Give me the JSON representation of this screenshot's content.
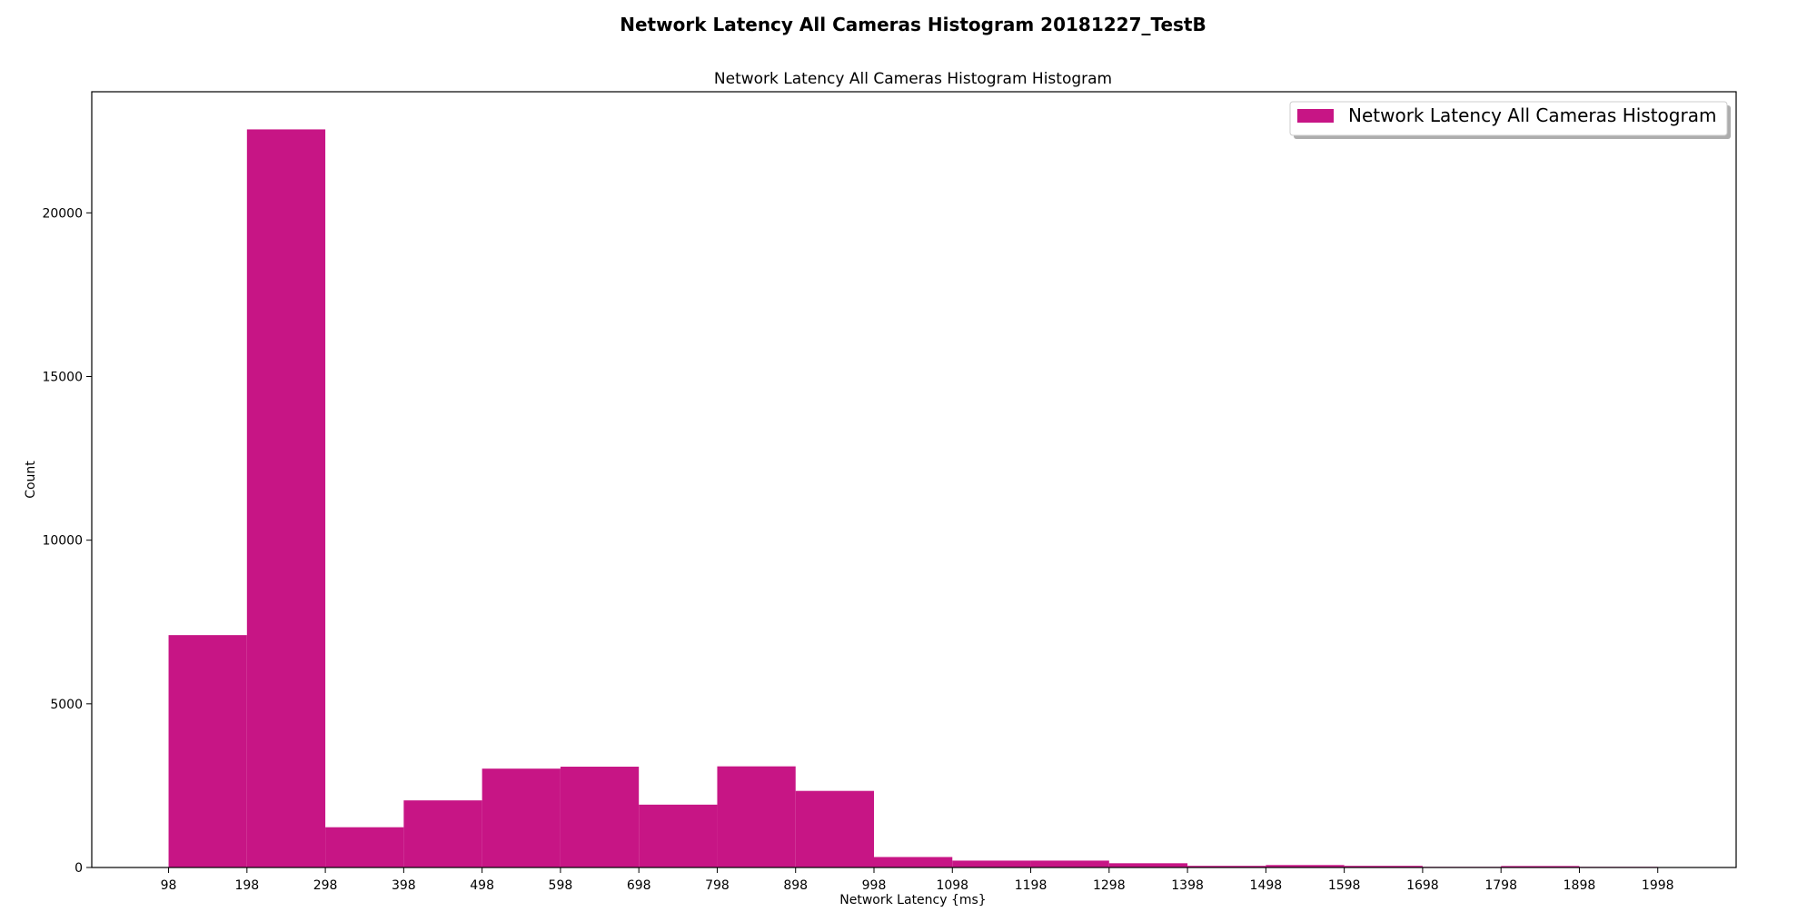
{
  "figure_title": "Network Latency All Cameras Histogram 20181227_TestB",
  "chart_data": {
    "type": "bar",
    "title": "Network Latency All Cameras Histogram Histogram",
    "xlabel": "Network Latency {ms}",
    "ylabel": "Count",
    "xlim": [
      0,
      2098
    ],
    "ylim": [
      0,
      23700
    ],
    "bin_edges": [
      98,
      198,
      298,
      398,
      498,
      598,
      698,
      798,
      898,
      998,
      1098,
      1198,
      1298,
      1398,
      1498,
      1598,
      1698,
      1798,
      1898,
      1998
    ],
    "values": [
      7100,
      22550,
      1230,
      2050,
      3020,
      3080,
      1920,
      3090,
      2340,
      320,
      210,
      210,
      130,
      50,
      75,
      50,
      20,
      45,
      20
    ],
    "x_ticks": [
      "98",
      "198",
      "298",
      "398",
      "498",
      "598",
      "698",
      "798",
      "898",
      "998",
      "1098",
      "1198",
      "1298",
      "1398",
      "1498",
      "1598",
      "1698",
      "1798",
      "1898",
      "1998"
    ],
    "y_ticks": [
      0,
      5000,
      10000,
      15000,
      20000
    ],
    "y_tick_labels": [
      "0",
      "5000",
      "10000",
      "15000",
      "20000"
    ],
    "series": [
      {
        "name": "Network Latency All Cameras Histogram",
        "color": "#c71585"
      }
    ],
    "legend": {
      "placement": "top-right"
    },
    "grid": false
  }
}
